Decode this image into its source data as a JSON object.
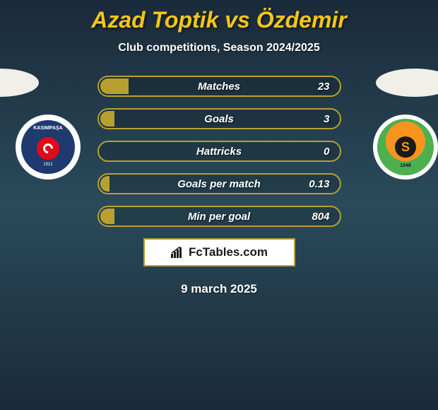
{
  "title": "Azad Toptik vs Özdemir",
  "subtitle": "Club competitions, Season 2024/2025",
  "player_left": {
    "club": "KASIMPAŞA",
    "year": "1921",
    "ellipse_color": "#f0f0e8",
    "badge_bg": "#1e3a6e"
  },
  "player_right": {
    "club_letter": "S",
    "year": "1948",
    "ellipse_color": "#f0f0e8",
    "badge_colors": {
      "orange": "#f7941e",
      "green": "#4caf50",
      "dark": "#1a1a1a"
    }
  },
  "stats": [
    {
      "label": "Matches",
      "value": "23",
      "fill_pct": 12
    },
    {
      "label": "Goals",
      "value": "3",
      "fill_pct": 6
    },
    {
      "label": "Hattricks",
      "value": "0",
      "fill_pct": 0
    },
    {
      "label": "Goals per match",
      "value": "0.13",
      "fill_pct": 4
    },
    {
      "label": "Min per goal",
      "value": "804",
      "fill_pct": 6
    }
  ],
  "colors": {
    "accent": "#f5c518",
    "bar_border": "#b8a030",
    "bar_fill": "#b8a030",
    "text": "#ffffff"
  },
  "brand": "FcTables.com",
  "date": "9 march 2025"
}
